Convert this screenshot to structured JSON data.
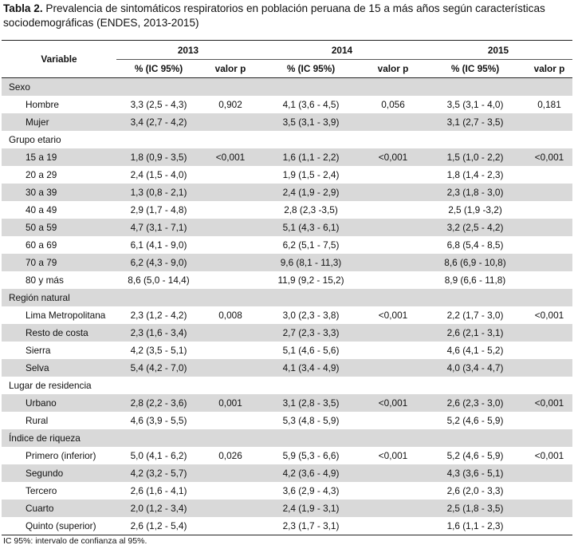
{
  "caption": {
    "label": "Tabla 2.",
    "text": " Prevalencia de sintomáticos respiratorios en población peruana de 15 a más años según características sociodemográficas (ENDES, 2013-2015)"
  },
  "header": {
    "variable": "Variable",
    "years": [
      "2013",
      "2014",
      "2015"
    ],
    "pct": "% (IC 95%)",
    "pval": "valor p"
  },
  "groups": [
    {
      "name": "Sexo",
      "rows": [
        {
          "label": "Hombre",
          "v": [
            "3,3 (2,5 - 4,3)",
            "0,902",
            "4,1 (3,6 - 4,5)",
            "0,056",
            "3,5 (3,1 - 4,0)",
            "0,181"
          ]
        },
        {
          "label": "Mujer",
          "v": [
            "3,4 (2,7 - 4,2)",
            "",
            "3,5 (3,1 - 3,9)",
            "",
            "3,1 (2,7 - 3,5)",
            ""
          ]
        }
      ]
    },
    {
      "name": "Grupo etario",
      "rows": [
        {
          "label": "15 a 19",
          "v": [
            "1,8 (0,9 - 3,5)",
            "<0,001",
            "1,6 (1,1 - 2,2)",
            "<0,001",
            "1,5 (1,0 - 2,2)",
            "<0,001"
          ]
        },
        {
          "label": "20 a 29",
          "v": [
            "2,4 (1,5 - 4,0)",
            "",
            "1,9 (1,5 - 2,4)",
            "",
            "1,8 (1,4 - 2,3)",
            ""
          ]
        },
        {
          "label": "30 a 39",
          "v": [
            "1,3 (0,8 - 2,1)",
            "",
            "2,4 (1,9 - 2,9)",
            "",
            "2,3 (1,8 - 3,0)",
            ""
          ]
        },
        {
          "label": "40 a 49",
          "v": [
            "2,9 (1,7 - 4,8)",
            "",
            "2,8 (2,3 -3,5)",
            "",
            "2,5 (1,9 -3,2)",
            ""
          ]
        },
        {
          "label": "50 a 59",
          "v": [
            "4,7 (3,1 - 7,1)",
            "",
            "5,1 (4,3 - 6,1)",
            "",
            "3,2 (2,5 - 4,2)",
            ""
          ]
        },
        {
          "label": "60 a 69",
          "v": [
            "6,1 (4,1 - 9,0)",
            "",
            "6,2 (5,1 - 7,5)",
            "",
            "6,8 (5,4 - 8,5)",
            ""
          ]
        },
        {
          "label": "70 a 79",
          "v": [
            "6,2 (4,3 - 9,0)",
            "",
            "9,6 (8,1 - 11,3)",
            "",
            "8,6 (6,9 - 10,8)",
            ""
          ]
        },
        {
          "label": "80 y más",
          "v": [
            "8,6 (5,0 - 14,4)",
            "",
            "11,9 (9,2 - 15,2)",
            "",
            "8,9 (6,6 - 11,8)",
            ""
          ]
        }
      ]
    },
    {
      "name": "Región natural",
      "rows": [
        {
          "label": "Lima Metropolitana",
          "v": [
            "2,3 (1,2 - 4,2)",
            "0,008",
            "3,0 (2,3 - 3,8)",
            "<0,001",
            "2,2 (1,7 - 3,0)",
            "<0,001"
          ]
        },
        {
          "label": "Resto de costa",
          "v": [
            "2,3 (1,6 - 3,4)",
            "",
            "2,7 (2,3 - 3,3)",
            "",
            "2,6 (2,1 - 3,1)",
            ""
          ]
        },
        {
          "label": "Sierra",
          "v": [
            "4,2 (3,5 - 5,1)",
            "",
            "5,1 (4,6 - 5,6)",
            "",
            "4,6 (4,1 - 5,2)",
            ""
          ]
        },
        {
          "label": "Selva",
          "v": [
            "5,4 (4,2 - 7,0)",
            "",
            "4,1 (3,4 - 4,9)",
            "",
            "4,0 (3,4 - 4,7)",
            ""
          ]
        }
      ]
    },
    {
      "name": "Lugar de residencia",
      "rows": [
        {
          "label": "Urbano",
          "v": [
            "2,8 (2,2 - 3,6)",
            "0,001",
            "3,1 (2,8 - 3,5)",
            "<0,001",
            "2,6 (2,3 - 3,0)",
            "<0,001"
          ]
        },
        {
          "label": "Rural",
          "v": [
            "4,6 (3,9 - 5,5)",
            "",
            "5,3 (4,8 - 5,9)",
            "",
            "5,2 (4,6 - 5,9)",
            ""
          ]
        }
      ]
    },
    {
      "name": "Índice de riqueza",
      "rows": [
        {
          "label": "Primero (inferior)",
          "v": [
            "5,0 (4,1 - 6,2)",
            "0,026",
            "5,9 (5,3 - 6,6)",
            "<0,001",
            "5,2 (4,6 - 5,9)",
            "<0,001"
          ]
        },
        {
          "label": "Segundo",
          "v": [
            "4,2 (3,2 - 5,7)",
            "",
            "4,2 (3,6 - 4,9)",
            "",
            "4,3 (3,6 - 5,1)",
            ""
          ]
        },
        {
          "label": "Tercero",
          "v": [
            "2,6 (1,6 - 4,1)",
            "",
            "3,6 (2,9 - 4,3)",
            "",
            "2,6 (2,0 - 3,3)",
            ""
          ]
        },
        {
          "label": "Cuarto",
          "v": [
            "2,0 (1,2 - 3,4)",
            "",
            "2,4 (1,9 - 3,1)",
            "",
            "2,5 (1,8 - 3,5)",
            ""
          ]
        },
        {
          "label": "Quinto (superior)",
          "v": [
            "2,6 (1,2 - 5,4)",
            "",
            "2,3 (1,7 - 3,1)",
            "",
            "1,6 (1,1 - 2,3)",
            ""
          ]
        }
      ]
    }
  ],
  "footnote": "IC 95%: intervalo de confianza al 95%."
}
